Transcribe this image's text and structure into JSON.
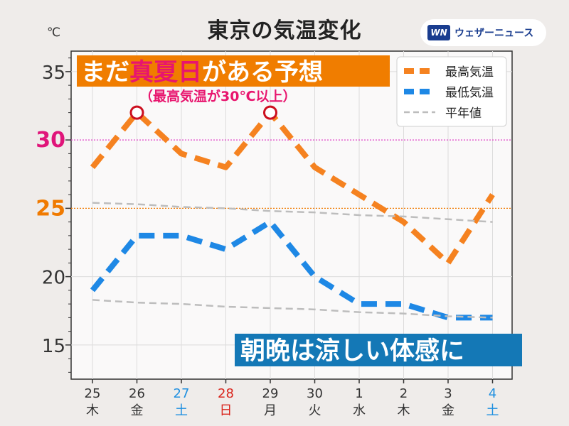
{
  "brand": {
    "logo_text": "WN",
    "name": "ウェザーニュース",
    "primary_color": "#1a3d8f"
  },
  "chart_data": {
    "type": "line",
    "title": "東京の気温変化",
    "y_unit": "℃",
    "ylim": [
      12.5,
      36.5
    ],
    "y_ticks": [
      15,
      20,
      25,
      30,
      35
    ],
    "y_tick_highlight": {
      "30": "#e0157a",
      "25": "#f07a00"
    },
    "x": [
      "25",
      "26",
      "27",
      "28",
      "29",
      "30",
      "1",
      "2",
      "3",
      "4"
    ],
    "weekdays": [
      "木",
      "金",
      "土",
      "日",
      "月",
      "火",
      "水",
      "木",
      "金",
      "土"
    ],
    "weekday_colors": [
      "#333333",
      "#333333",
      "#1e8fe0",
      "#d9241c",
      "#333333",
      "#333333",
      "#333333",
      "#333333",
      "#333333",
      "#1e8fe0"
    ],
    "series": [
      {
        "name": "最高気温",
        "color": "#f58220",
        "style": "dashed-thick",
        "values": [
          28,
          32,
          29,
          28,
          32,
          28,
          26,
          24,
          21,
          26
        ]
      },
      {
        "name": "最低気温",
        "color": "#1e88e5",
        "style": "dashed-thick",
        "values": [
          19,
          23,
          23,
          22,
          24,
          20,
          18,
          18,
          17,
          17
        ]
      },
      {
        "name": "平年値",
        "color": "#bdbdbd",
        "style": "dashed-thin",
        "values": [
          25.4,
          25.3,
          25.1,
          25.0,
          24.8,
          24.7,
          24.5,
          24.4,
          24.2,
          24.0
        ]
      },
      {
        "name": "平年値-low",
        "color": "#bdbdbd",
        "style": "dashed-thin",
        "in_legend": false,
        "values": [
          18.3,
          18.1,
          18.0,
          17.8,
          17.7,
          17.6,
          17.4,
          17.3,
          17.1,
          17.0
        ]
      }
    ],
    "reference_lines": [
      {
        "value": 30,
        "color": "#e040c8",
        "style": "dotted"
      },
      {
        "value": 25,
        "color": "#f07a00",
        "style": "dotted"
      }
    ],
    "markers": [
      {
        "series": 0,
        "index": 1,
        "shape": "open-circle",
        "color": "#cc0f1f"
      },
      {
        "series": 0,
        "index": 4,
        "shape": "open-circle",
        "color": "#cc0f1f"
      }
    ],
    "annotations": {
      "headline_parts": [
        {
          "text": "まだ",
          "color": "#ffffff"
        },
        {
          "text": "真夏日",
          "color": "#e8156e"
        },
        {
          "text": "がある予想",
          "color": "#ffffff"
        }
      ],
      "headline_bg": "#f07d00",
      "sub": "（最高気温が30℃以上）",
      "sub_color": "#e8156e",
      "bottom": "朝晩は涼しい体感に",
      "bottom_bg": "#1478b6"
    },
    "grid": true,
    "legend_position": "top-right"
  }
}
